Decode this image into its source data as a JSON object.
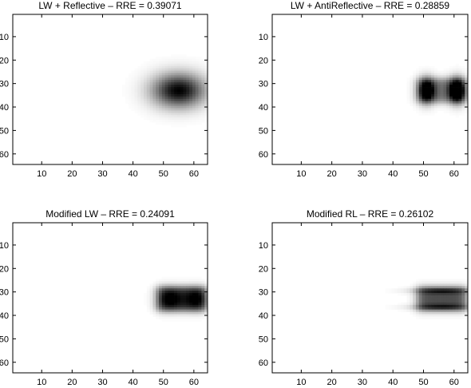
{
  "chart_data": [
    {
      "type": "heatmap",
      "title": "LW + Reflective – RRE = 0.39071",
      "xlim": [
        0.5,
        64.5
      ],
      "ylim": [
        64.5,
        0.5
      ],
      "xticks": [
        10,
        20,
        30,
        40,
        50,
        60
      ],
      "yticks": [
        10,
        20,
        30,
        40,
        50,
        60
      ],
      "colormap": "gray-inverted",
      "grid": false,
      "blobs": [
        {
          "shape": "gaussian",
          "x_center": 55,
          "y_center": 33,
          "x_sigma": 6,
          "y_sigma": 5,
          "intensity": 1.0
        }
      ]
    },
    {
      "type": "heatmap",
      "title": "LW + AntiReflective – RRE = 0.28859",
      "xlim": [
        0.5,
        64.5
      ],
      "ylim": [
        64.5,
        0.5
      ],
      "xticks": [
        10,
        20,
        30,
        40,
        50,
        60
      ],
      "yticks": [
        10,
        20,
        30,
        40,
        50,
        60
      ],
      "colormap": "gray-inverted",
      "grid": false,
      "blobs": [
        {
          "shape": "gaussian",
          "x_center": 51,
          "y_center": 33,
          "x_sigma": 1.8,
          "y_sigma": 3.6,
          "intensity": 0.85
        },
        {
          "shape": "gaussian",
          "x_center": 61,
          "y_center": 33,
          "x_sigma": 1.8,
          "y_sigma": 3.6,
          "intensity": 1.0
        },
        {
          "shape": "rect",
          "x0": 48,
          "x1": 64,
          "y0": 28,
          "y1": 38,
          "intensity": 0.55
        }
      ]
    },
    {
      "type": "heatmap",
      "title": "Modified LW – RRE = 0.24091",
      "xlim": [
        0.5,
        64.5
      ],
      "ylim": [
        64.5,
        0.5
      ],
      "xticks": [
        10,
        20,
        30,
        40,
        50,
        60
      ],
      "yticks": [
        10,
        20,
        30,
        40,
        50,
        60
      ],
      "colormap": "gray-inverted",
      "grid": false,
      "blobs": [
        {
          "shape": "rect",
          "x0": 48,
          "x1": 64,
          "y0": 28,
          "y1": 38,
          "intensity": 0.85
        },
        {
          "shape": "gaussian",
          "x_center": 52,
          "y_center": 33,
          "x_sigma": 2.5,
          "y_sigma": 3,
          "intensity": 0.25
        },
        {
          "shape": "gaussian",
          "x_center": 61,
          "y_center": 33,
          "x_sigma": 2.5,
          "y_sigma": 3,
          "intensity": 0.25
        }
      ]
    },
    {
      "type": "heatmap",
      "title": "Modified RL – RRE = 0.26102",
      "xlim": [
        0.5,
        64.5
      ],
      "ylim": [
        64.5,
        0.5
      ],
      "xticks": [
        10,
        20,
        30,
        40,
        50,
        60
      ],
      "yticks": [
        10,
        20,
        30,
        40,
        50,
        60
      ],
      "colormap": "gray-inverted",
      "grid": false,
      "blobs": [
        {
          "shape": "rect",
          "x0": 48,
          "x1": 64,
          "y0": 28,
          "y1": 38,
          "intensity": 0.7
        },
        {
          "shape": "gaussian",
          "x_center": 56,
          "y_center": 29.5,
          "x_sigma": 7,
          "y_sigma": 0.9,
          "intensity": 0.35
        },
        {
          "shape": "gaussian",
          "x_center": 56,
          "y_center": 36.5,
          "x_sigma": 7,
          "y_sigma": 0.9,
          "intensity": 0.35
        }
      ]
    }
  ]
}
